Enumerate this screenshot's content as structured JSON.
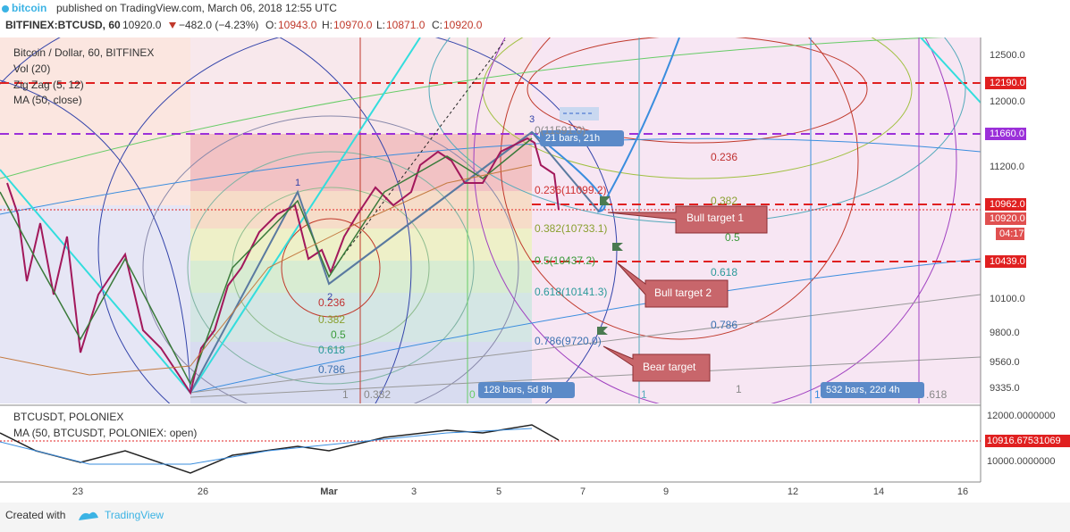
{
  "header": {
    "brand": "bitcoin",
    "published": "published on TradingView.com, March 06, 2018 12:55 UTC",
    "symbol": "BITFINEX:BTCUSD, 60",
    "price": "10920.0",
    "change": "−482.0 (−4.23%)",
    "o_label": "O:",
    "o": "10943.0",
    "h_label": "H:",
    "h": "10970.0",
    "l_label": "L:",
    "l": "10871.0",
    "c_label": "C:",
    "c": "10920.0"
  },
  "legend": [
    "Bitcoin / Dollar, 60, BITFINEX",
    "Vol (20)",
    "Zig Zag (5, 12)",
    "MA (50, close)"
  ],
  "price_axis": [
    "12500.0",
    "12190.0",
    "12000.0",
    "11660.0",
    "11200.0",
    "10962.0",
    "10920.0",
    "04:17",
    "10439.0",
    "10100.0",
    "9800.0",
    "9560.0",
    "9335.0"
  ],
  "fib_retracement": [
    "0(11591.0)",
    "0.236(11099.2)",
    "0.382(10733.1)",
    "0.5(10437.2)",
    "0.618(10141.3)",
    "0.786(9720.0)"
  ],
  "fan_levels": [
    "0.236",
    "0.382",
    "0.5",
    "0.618",
    "0.786"
  ],
  "arc_levels": [
    "0.236",
    "0.382",
    "0.5",
    "0.618",
    "0.786"
  ],
  "zigzag_points": [
    "1",
    "2",
    "3"
  ],
  "ranges": [
    "21 bars, 21h",
    "128 bars, 5d 8h",
    "532 bars, 22d 4h"
  ],
  "callouts": [
    "Bull target 1",
    "Bull target 2",
    "Bear target"
  ],
  "arc_bottom_labels": [
    "1",
    "0.382",
    "0",
    "1",
    "1",
    "1",
    ".618"
  ],
  "lower_pane": {
    "title": "BTCUSDT, POLONIEX",
    "ma": "MA (50, BTCUSDT, POLONIEX: open)",
    "axis": [
      "12000.0000000",
      "10916.67531069",
      "10000.0000000"
    ]
  },
  "time_axis": [
    "23",
    "26",
    "Mar",
    "3",
    "5",
    "7",
    "9",
    "12",
    "14",
    "16"
  ],
  "footer": {
    "created": "Created with",
    "brand": "TradingView"
  }
}
